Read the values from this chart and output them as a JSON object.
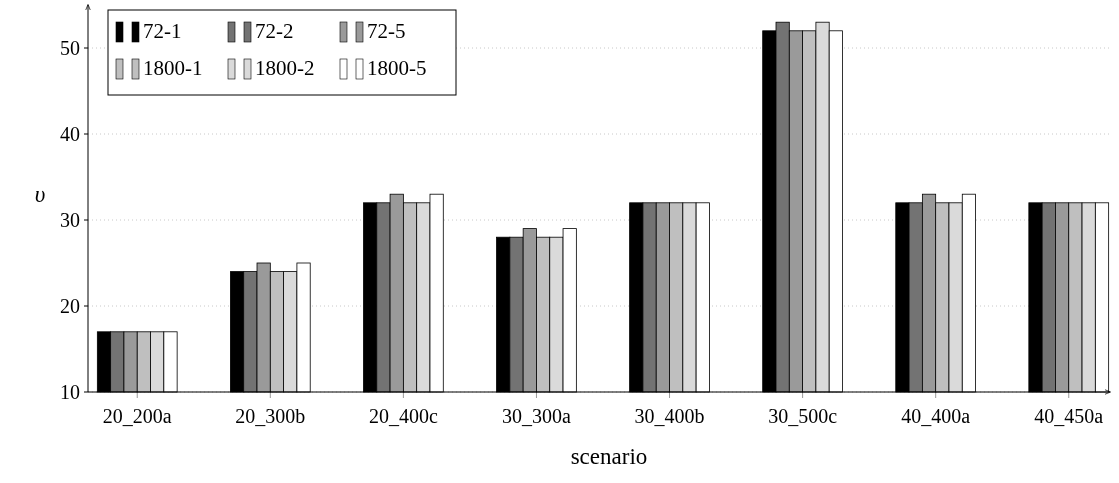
{
  "chart_data": {
    "type": "bar",
    "xlabel": "scenario",
    "ylabel": "υ",
    "categories": [
      "20_200a",
      "20_300b",
      "20_400c",
      "30_300a",
      "30_400b",
      "30_500c",
      "40_400a",
      "40_450a"
    ],
    "series": [
      {
        "name": "72-1",
        "color": "#000000",
        "values": [
          17,
          24,
          32,
          28,
          32,
          52,
          32,
          32
        ]
      },
      {
        "name": "72-2",
        "color": "#737373",
        "values": [
          17,
          24,
          32,
          28,
          32,
          53,
          32,
          32
        ]
      },
      {
        "name": "72-5",
        "color": "#9a9a9a",
        "values": [
          17,
          25,
          33,
          29,
          32,
          52,
          33,
          32
        ]
      },
      {
        "name": "1800-1",
        "color": "#bfbfbf",
        "values": [
          17,
          24,
          32,
          28,
          32,
          52,
          32,
          32
        ]
      },
      {
        "name": "1800-2",
        "color": "#dadada",
        "values": [
          17,
          24,
          32,
          28,
          32,
          53,
          32,
          32
        ]
      },
      {
        "name": "1800-5",
        "color": "#ffffff",
        "values": [
          17,
          25,
          33,
          29,
          32,
          52,
          33,
          32
        ]
      }
    ],
    "ylim": [
      10,
      55
    ],
    "yticks": [
      10,
      20,
      30,
      40,
      50
    ],
    "grid": "y",
    "legend": "top left"
  }
}
